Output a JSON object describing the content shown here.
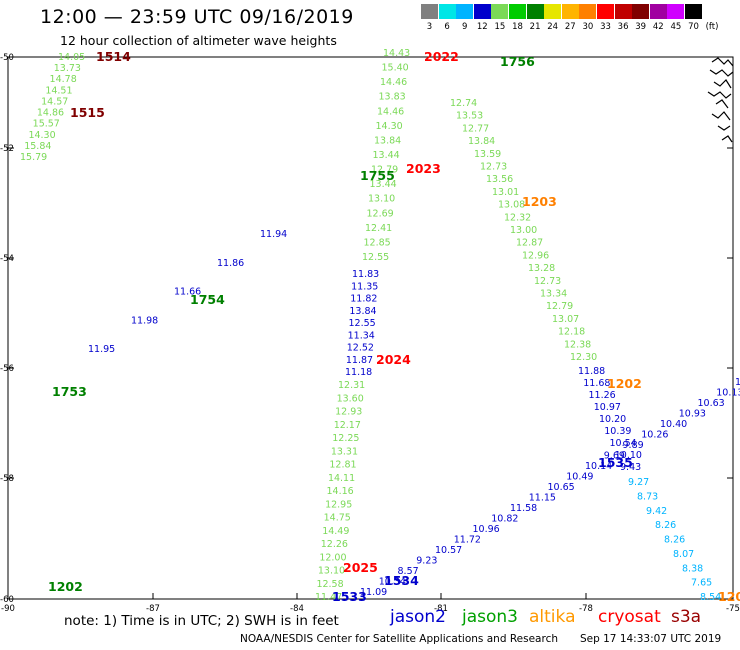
{
  "title": "12:00 — 23:59 UTC 09/16/2019",
  "subtitle": "12 hour collection of altimeter wave heights",
  "legend": {
    "unit": "(ft)",
    "bins": [
      {
        "label": "3",
        "color": "#808080"
      },
      {
        "label": "6",
        "color": "#00e6e6"
      },
      {
        "label": "9",
        "color": "#00b4ff"
      },
      {
        "label": "12",
        "color": "#0000cc"
      },
      {
        "label": "15",
        "color": "#7bd957"
      },
      {
        "label": "18",
        "color": "#00cc00"
      },
      {
        "label": "21",
        "color": "#008000"
      },
      {
        "label": "24",
        "color": "#e6e600"
      },
      {
        "label": "27",
        "color": "#ffb400"
      },
      {
        "label": "30",
        "color": "#ff8000"
      },
      {
        "label": "33",
        "color": "#ff0000"
      },
      {
        "label": "36",
        "color": "#c00000"
      },
      {
        "label": "39",
        "color": "#800000"
      },
      {
        "label": "42",
        "color": "#a000a0"
      },
      {
        "label": "45",
        "color": "#d000ff"
      },
      {
        "label": "70",
        "color": "#000000"
      }
    ]
  },
  "axes": {
    "lat_labels": [
      "-50",
      "-52",
      "-54",
      "-56",
      "-58",
      "-60"
    ],
    "lon_labels": [
      "-90",
      "-87",
      "-84",
      "-81",
      "-78",
      "-75"
    ]
  },
  "time_labels": [
    {
      "text": "1514",
      "color": "#800000"
    },
    {
      "text": "1515",
      "color": "#800000"
    },
    {
      "text": "2022",
      "color": "#ff0000"
    },
    {
      "text": "1756",
      "color": "#008000"
    },
    {
      "text": "1755",
      "color": "#008000"
    },
    {
      "text": "2023",
      "color": "#ff0000"
    },
    {
      "text": "1203",
      "color": "#ff8000"
    },
    {
      "text": "1754",
      "color": "#008000"
    },
    {
      "text": "2024",
      "color": "#ff0000"
    },
    {
      "text": "1202",
      "color": "#ff8000"
    },
    {
      "text": "1753",
      "color": "#008000"
    },
    {
      "text": "1535",
      "color": "#0000cc"
    },
    {
      "text": "2025",
      "color": "#ff0000"
    },
    {
      "text": "1534",
      "color": "#0000cc"
    },
    {
      "text": "1533",
      "color": "#0000cc"
    },
    {
      "text": "1202",
      "color": "#008000"
    },
    {
      "text": "120",
      "color": "#ff8000"
    }
  ],
  "tracks": {
    "track_1514": {
      "color": "#7bd957",
      "values": [
        "14.05",
        "13.73",
        "14.78",
        "14.51",
        "14.57",
        "14.86",
        "15.57",
        "14.30",
        "15.84",
        "15.79"
      ]
    },
    "track_2022": {
      "color": "#7bd957",
      "values": [
        "14.43",
        "15.40",
        "14.46",
        "13.83",
        "14.46",
        "14.30",
        "13.84",
        "13.44",
        "12.79",
        "13.44",
        "13.10",
        "12.69",
        "12.41",
        "12.85",
        "12.55"
      ]
    },
    "track_2024": {
      "color": "#0000cc",
      "values": [
        "11.83",
        "11.35",
        "11.82",
        "13.84",
        "12.55",
        "11.34",
        "12.52",
        "11.87",
        "11.18"
      ]
    },
    "track_2024_south": {
      "color": "#7bd957",
      "values": [
        "12.31",
        "13.60",
        "12.93",
        "12.17",
        "12.25",
        "13.31",
        "12.81",
        "14.11",
        "14.16",
        "12.95",
        "14.75",
        "14.49",
        "12.26",
        "12.00",
        "13.10",
        "12.58",
        "11.47"
      ]
    },
    "track_1756": {
      "color": "#7bd957",
      "values": [
        "12.74",
        "13.53",
        "12.77",
        "13.84",
        "13.59",
        "12.73",
        "13.56",
        "13.01",
        "13.08",
        "12.32",
        "13.00",
        "12.87",
        "12.96",
        "13.28",
        "12.73",
        "13.34",
        "12.79",
        "13.07",
        "12.18",
        "12.38",
        "12.30"
      ]
    },
    "track_1202": {
      "color": "#0000cc",
      "values": [
        "11.88",
        "11.68",
        "11.26",
        "10.97",
        "10.20",
        "10.39",
        "10.54",
        "10.10",
        "9.43"
      ]
    },
    "track_1202_south": {
      "color": "#00b4ff",
      "values": [
        "9.27",
        "8.73",
        "9.42",
        "8.26",
        "8.26",
        "8.07",
        "8.38",
        "7.65",
        "8.54"
      ]
    },
    "track_1754": {
      "color": "#0000cc",
      "values": [
        "11.94",
        "11.86",
        "11.66",
        "11.98",
        "11.95"
      ]
    },
    "track_1533": {
      "color": "#0000cc",
      "values": [
        "10.26",
        "10.13",
        "10.63",
        "10.93",
        "10.40",
        "10.26",
        "9.89",
        "9.69",
        "10.14",
        "10.49",
        "10.65",
        "11.15",
        "11.58",
        "10.82",
        "10.96",
        "11.72",
        "10.57",
        "9.23",
        "8.57",
        "10.34",
        "11.09"
      ]
    }
  },
  "note": "note: 1) Time is in UTC; 2) SWH is in feet",
  "satellites": [
    {
      "name": "jason2",
      "color": "#0000cc"
    },
    {
      "name": "jason3",
      "color": "#00a000"
    },
    {
      "name": "altika",
      "color": "#ff9900"
    },
    {
      "name": "cryosat",
      "color": "#ff0000"
    },
    {
      "name": "s3a",
      "color": "#990000"
    }
  ],
  "footer": {
    "agency": "NOAA/NESDIS Center for Satellite Applications and Research",
    "timestamp": "Sep 17 14:33:07 UTC 2019"
  }
}
